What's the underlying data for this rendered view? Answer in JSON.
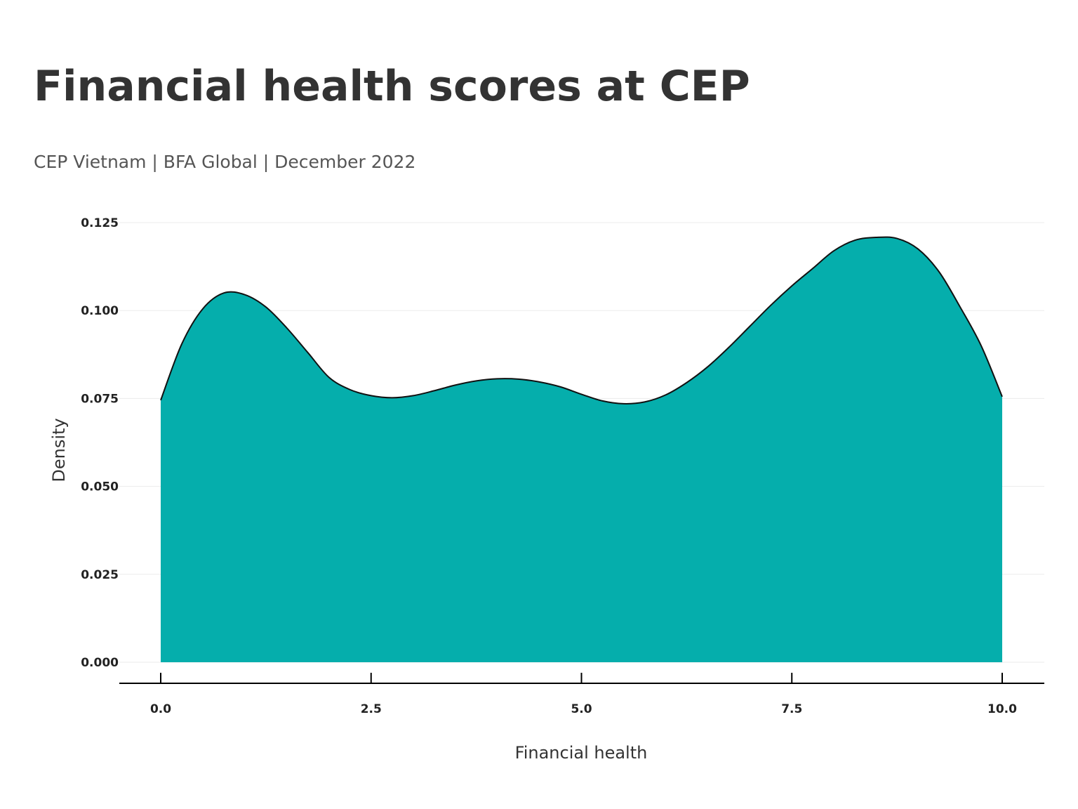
{
  "title": "Financial health scores at CEP",
  "subtitle": "CEP Vietnam | BFA Global | December 2022",
  "colors": {
    "fill": "#05aeac",
    "outline": "#111111",
    "grid": "#ebebeb",
    "text": "#333333"
  },
  "chart_data": {
    "type": "area",
    "title": "Financial health scores at CEP",
    "subtitle": "CEP Vietnam | BFA Global | December 2022",
    "xlabel": "Financial health",
    "ylabel": "Density",
    "xlim": [
      0,
      10
    ],
    "ylim": [
      0,
      0.125
    ],
    "x_ticks": [
      "0.0",
      "2.5",
      "5.0",
      "7.5",
      "10.0"
    ],
    "y_ticks": [
      "0.000",
      "0.025",
      "0.050",
      "0.075",
      "0.100",
      "0.125"
    ],
    "grid": "horizontal",
    "legend": "none",
    "x": [
      0,
      0.25,
      0.5,
      0.75,
      1.0,
      1.25,
      1.5,
      1.75,
      2.0,
      2.25,
      2.5,
      2.75,
      3.0,
      3.25,
      3.5,
      3.75,
      4.0,
      4.25,
      4.5,
      4.75,
      5.0,
      5.25,
      5.5,
      5.75,
      6.0,
      6.25,
      6.5,
      6.75,
      7.0,
      7.25,
      7.5,
      7.75,
      8.0,
      8.25,
      8.5,
      8.75,
      9.0,
      9.25,
      9.5,
      9.75,
      10.0
    ],
    "y": [
      0.0745,
      0.0905,
      0.1005,
      0.105,
      0.1045,
      0.101,
      0.095,
      0.088,
      0.081,
      0.0775,
      0.0758,
      0.0752,
      0.0758,
      0.0772,
      0.0788,
      0.08,
      0.0806,
      0.0805,
      0.0797,
      0.0783,
      0.0762,
      0.0743,
      0.0735,
      0.074,
      0.076,
      0.0795,
      0.084,
      0.0895,
      0.0955,
      0.1015,
      0.107,
      0.112,
      0.117,
      0.12,
      0.1208,
      0.1205,
      0.1175,
      0.111,
      0.101,
      0.09,
      0.0755
    ]
  }
}
